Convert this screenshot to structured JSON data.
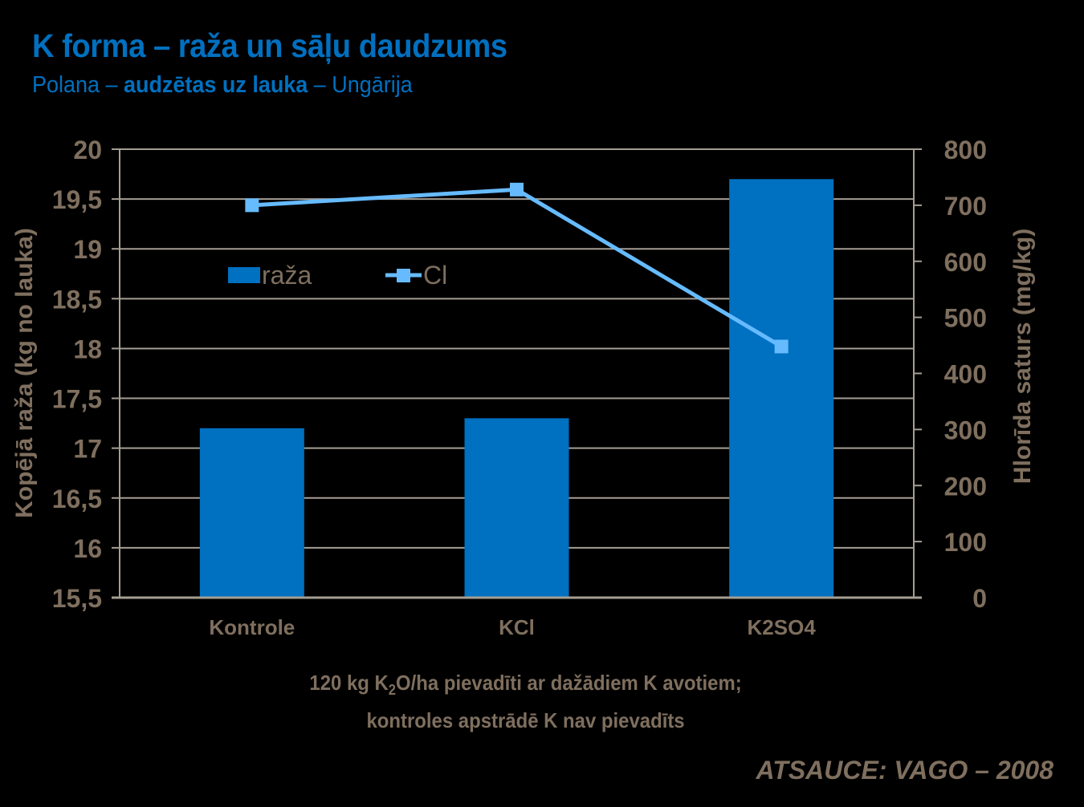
{
  "header": {
    "title": "K forma – raža un sāļu daudzums",
    "subtitle_part1": "Polana – ",
    "subtitle_part2": "audzētas uz lauka",
    "subtitle_part3": " – Ungārija"
  },
  "note": {
    "line1_a": "120 kg K",
    "line1_sub": "2",
    "line1_b": "O/ha pievadīti ar dažādiem K avotiem;",
    "line2": "kontroles apstrādē K nav pievadīts"
  },
  "source": "ATSAUCE: VAGO – 2008",
  "colors": {
    "bar": "#0070C0",
    "line": "#66BBFF",
    "axis_text": "#7F6F5E",
    "grid": "#A59E94",
    "title": "#0070C0"
  },
  "chart_data": {
    "type": "bar+line",
    "title": "K forma – raža un sāļu daudzums",
    "subtitle": "Polana – audzētas uz lauka – Ungārija",
    "categories": [
      "Kontrole",
      "KCl",
      "K2SO4"
    ],
    "xlabel": "120 kg K2O/ha pievadīti ar dažādiem K avotiem; kontroles apstrādē K nav pievadīts",
    "ylabel_left": "Kopējā raža (kg no lauka)",
    "ylabel_right": "Hlorīda saturs (mg/kg)",
    "ylim_left": [
      15.5,
      20
    ],
    "yticks_left": [
      "15,5",
      "16",
      "16,5",
      "17",
      "17,5",
      "18",
      "18,5",
      "19",
      "19,5",
      "20"
    ],
    "ylim_right": [
      0,
      800
    ],
    "yticks_right": [
      "0",
      "100",
      "200",
      "300",
      "400",
      "500",
      "600",
      "700",
      "800"
    ],
    "grid": true,
    "legend_position": "inside-upper-left",
    "series": [
      {
        "name": "raža",
        "type": "bar",
        "axis": "left",
        "values": [
          17.2,
          17.3,
          19.7
        ]
      },
      {
        "name": "Cl",
        "type": "line",
        "axis": "right",
        "marker": "square",
        "values": [
          700,
          728,
          448
        ]
      }
    ]
  }
}
